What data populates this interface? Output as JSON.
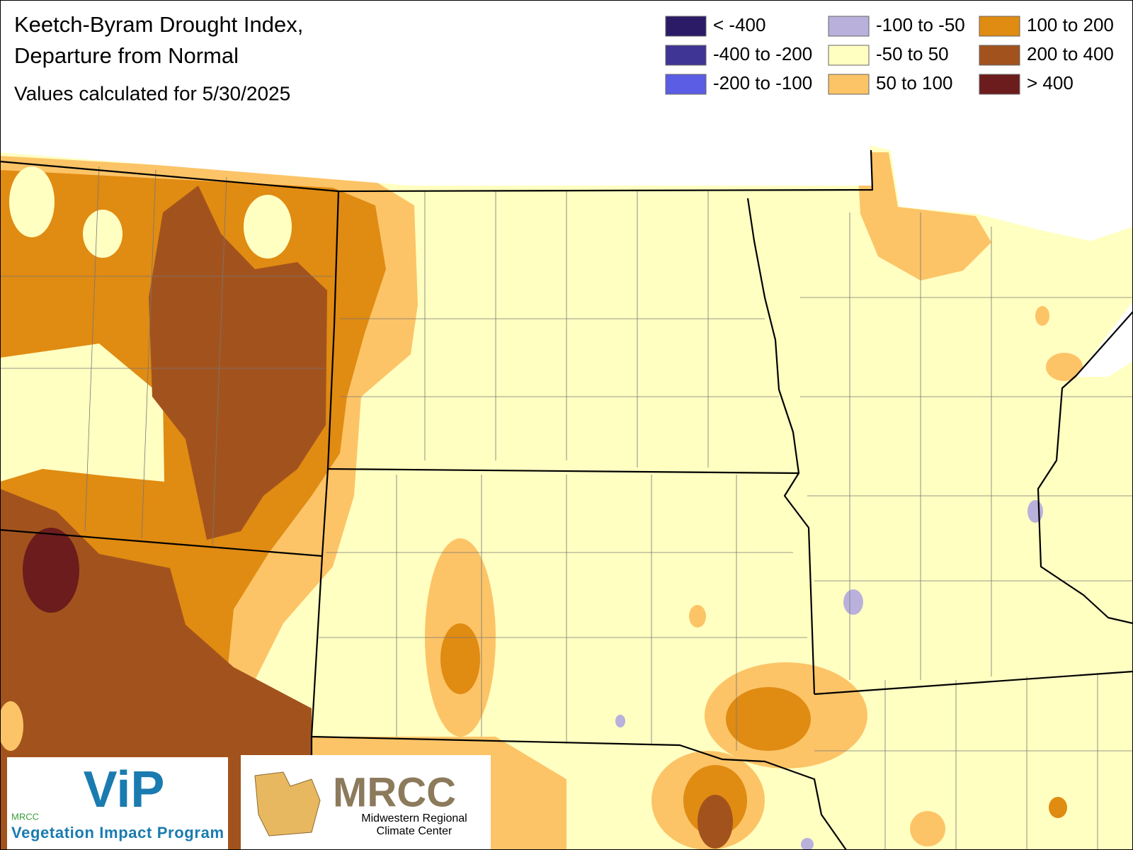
{
  "header": {
    "title_lines": [
      "Keetch-Byram Drought Index,",
      "Departure from Normal"
    ],
    "subtitle": "Values calculated for 5/30/2025"
  },
  "legend": {
    "items": [
      {
        "label": "< -400",
        "color": "#2b1a66"
      },
      {
        "label": "-400 to -200",
        "color": "#3f3594"
      },
      {
        "label": "-200 to -100",
        "color": "#5b5de4"
      },
      {
        "label": "-100 to -50",
        "color": "#b9b0dc"
      },
      {
        "label": "-50 to 50",
        "color": "#ffffc2"
      },
      {
        "label": "50 to 100",
        "color": "#fcc467"
      },
      {
        "label": "100 to 200",
        "color": "#e08b12"
      },
      {
        "label": "200 to 400",
        "color": "#a2531d"
      },
      {
        "label": "> 400",
        "color": "#6c1c1c"
      }
    ]
  },
  "logos": {
    "vip": {
      "mark": "ViP",
      "small": "MRCC",
      "name": "Vegetation Impact Program"
    },
    "mrcc": {
      "mark": "MRCC",
      "name_lines": [
        "Midwestern Regional",
        "Climate Center"
      ]
    }
  }
}
